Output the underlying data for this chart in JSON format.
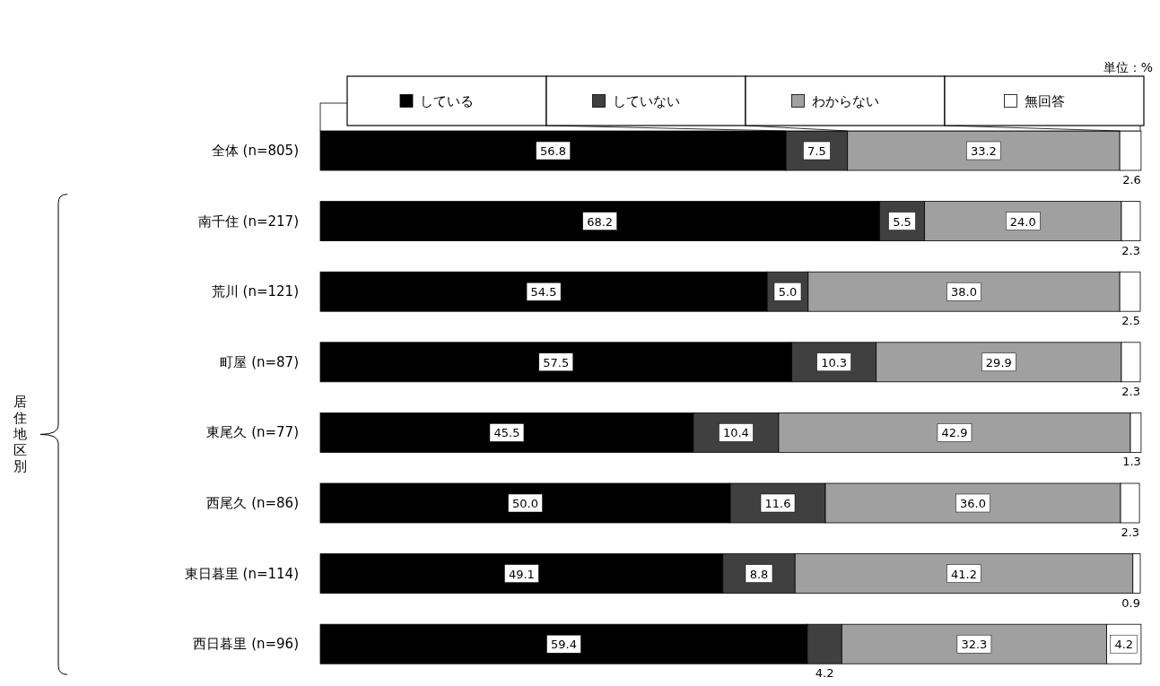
{
  "chart_data": {
    "type": "bar",
    "orientation": "horizontal",
    "stacked": true,
    "legend": "top",
    "annotations": [
      "単位：%",
      "居住地区別"
    ],
    "xlim": [
      0,
      100
    ],
    "categories": [
      "全体 (n=805)",
      "南千住 (n=217)",
      "荒川 (n=121)",
      "町屋 (n=87)",
      "東尾久 (n=77)",
      "西尾久 (n=86)",
      "東日暮里 (n=114)",
      "西日暮里 (n=96)"
    ],
    "series": [
      {
        "name": "している",
        "color": "#000000",
        "values": [
          56.8,
          68.2,
          54.5,
          57.5,
          45.5,
          50.0,
          49.1,
          59.4
        ],
        "value_labels": [
          "56.8",
          "68.2",
          "54.5",
          "57.5",
          "45.5",
          "50.0",
          "49.1",
          "59.4"
        ]
      },
      {
        "name": "していない",
        "color": "#404040",
        "values": [
          7.5,
          5.5,
          5.0,
          10.3,
          10.4,
          11.6,
          8.8,
          4.2
        ],
        "value_labels": [
          "7.5",
          "5.5",
          "5.0",
          "10.3",
          "10.4",
          "11.6",
          "8.8",
          "4.2"
        ]
      },
      {
        "name": "わからない",
        "color": "#a0a0a0",
        "values": [
          33.2,
          24.0,
          38.0,
          29.9,
          42.9,
          36.0,
          41.2,
          32.3
        ],
        "value_labels": [
          "33.2",
          "24.0",
          "38.0",
          "29.9",
          "42.9",
          "36.0",
          "41.2",
          "32.3"
        ]
      },
      {
        "name": "無回答",
        "color": "#ffffff",
        "values": [
          2.6,
          2.3,
          2.5,
          2.3,
          1.3,
          2.3,
          0.9,
          4.2
        ],
        "value_labels": [
          "2.6",
          "2.3",
          "2.5",
          "2.3",
          "1.3",
          "2.3",
          "0.9",
          "4.2"
        ]
      }
    ]
  }
}
